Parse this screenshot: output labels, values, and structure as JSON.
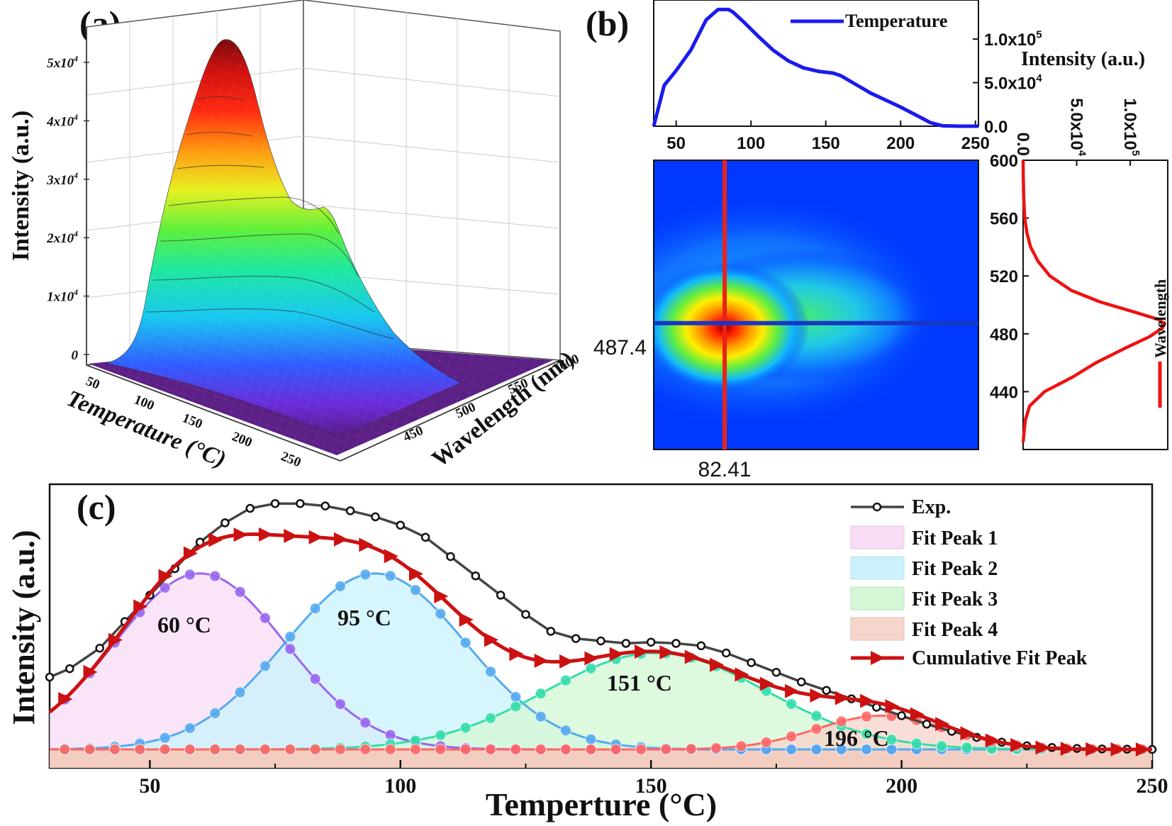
{
  "panel_a": {
    "label": "(a)",
    "z_ticks": [
      {
        "v": 0,
        "t": "0"
      },
      {
        "v": 10000,
        "t": "1x10"
      },
      {
        "v": 20000,
        "t": "2x10"
      },
      {
        "v": 30000,
        "t": "3x10"
      },
      {
        "v": 40000,
        "t": "4x10"
      },
      {
        "v": 50000,
        "t": "5x10"
      }
    ],
    "z_exp": "4",
    "zlabel": "Intensity (a.u.)",
    "t_ticks": [
      "50",
      "100",
      "150",
      "200",
      "250"
    ],
    "xlabel": "Temperature (°C)",
    "w_ticks": [
      "450",
      "500",
      "550",
      "600"
    ],
    "ylabel": "Wavelength (nm)"
  },
  "panel_b": {
    "label": "(b)",
    "top": {
      "legend": "Temperature",
      "ylabel": "Intensity (a.u.)",
      "x_ticks": [
        50,
        100,
        150,
        200,
        250
      ],
      "y_ticks": [
        {
          "v": 0,
          "t": "0.0"
        },
        {
          "v": 50000,
          "t": "5.0x10"
        },
        {
          "v": 100000,
          "t": "1.0x10"
        }
      ],
      "y_exps": [
        "",
        "4",
        "5"
      ],
      "xlim": [
        35,
        252
      ],
      "ylim": [
        0,
        140000
      ],
      "temperature_profile": {
        "x": [
          35,
          38,
          42,
          50,
          60,
          70,
          78,
          85,
          88,
          95,
          105,
          115,
          125,
          135,
          145,
          155,
          160,
          170,
          180,
          190,
          200,
          210,
          220,
          228,
          240,
          252
        ],
        "y": [
          0,
          20000,
          47000,
          64000,
          88000,
          122000,
          134000,
          134000,
          131000,
          120000,
          103000,
          87000,
          75000,
          67000,
          63000,
          61000,
          58000,
          48000,
          38000,
          30000,
          22000,
          13000,
          4000,
          500,
          0,
          0
        ]
      }
    },
    "map": {
      "crosshair_x_label": "82.41",
      "crosshair_y_label": "487.4",
      "crosshair_x": 82.41,
      "crosshair_y": 487.4,
      "xlim": [
        35,
        252
      ],
      "ylim": [
        400,
        600
      ]
    },
    "side": {
      "legend": "Wavelength",
      "y_ticks": [
        440,
        480,
        520,
        560,
        600
      ],
      "x_ticks": [
        {
          "v": 0,
          "t": "0.0"
        },
        {
          "v": 50000,
          "t": "5.0x10"
        },
        {
          "v": 100000,
          "t": "1.0x10"
        }
      ],
      "x_exps": [
        "",
        "4",
        "5"
      ],
      "xlim": [
        0,
        135000
      ],
      "wavelength_profile": {
        "wavelength": [
          405,
          420,
          430,
          440,
          450,
          460,
          470,
          478,
          484,
          487,
          490,
          495,
          502,
          510,
          520,
          530,
          540,
          550,
          560,
          575,
          590,
          600
        ],
        "intensity": [
          0,
          2000,
          6000,
          20000,
          46000,
          68000,
          95000,
          118000,
          130000,
          132000,
          126000,
          104000,
          72000,
          45000,
          25000,
          14000,
          7000,
          3500,
          1500,
          500,
          100,
          0
        ]
      }
    }
  },
  "panel_c": {
    "label": "(c)",
    "xlabel": "Temperture (°C)",
    "ylabel": "Intensity (a.u.)",
    "x_ticks": [
      50,
      100,
      150,
      200,
      250
    ],
    "xlim": [
      30,
      250
    ],
    "peak_labels": [
      "60 °C",
      "95 °C",
      "151 °C",
      "196 °C"
    ],
    "legend": [
      "Exp.",
      "Fit Peak 1",
      "Fit Peak 2",
      "Fit Peak 3",
      "Fit Peak 4",
      "Cumulative Fit Peak"
    ],
    "chart_data": {
      "type": "line",
      "x_units": "°C",
      "peaks": [
        {
          "name": "Fit Peak 1",
          "center": 60,
          "height": 0.73,
          "sigma": 17,
          "color": "#9966ee",
          "fill": "#f9ddf6"
        },
        {
          "name": "Fit Peak 2",
          "center": 95,
          "height": 0.73,
          "sigma": 18,
          "color": "#55aaee",
          "fill": "#cdf2fb"
        },
        {
          "name": "Fit Peak 3",
          "center": 151,
          "height": 0.4,
          "sigma": 22,
          "color": "#33ddaa",
          "fill": "#d4f7d6"
        },
        {
          "name": "Fit Peak 4",
          "center": 196,
          "height": 0.14,
          "sigma": 13,
          "color": "#ff6666",
          "fill": "#f6d6cc"
        }
      ],
      "cumulative_color": "#cc1111",
      "exp_color": "#444444",
      "exp": {
        "x": [
          30,
          34,
          40,
          45,
          50,
          55,
          60,
          65,
          70,
          75,
          80,
          85,
          90,
          95,
          100,
          105,
          110,
          115,
          120,
          125,
          130,
          135,
          140,
          145,
          150,
          155,
          160,
          165,
          170,
          175,
          180,
          185,
          190,
          195,
          200,
          205,
          210,
          215,
          220,
          225,
          230,
          235,
          240,
          245,
          250
        ],
        "y": [
          0.3,
          0.335,
          0.42,
          0.53,
          0.64,
          0.75,
          0.86,
          0.94,
          1.0,
          1.02,
          1.02,
          1.01,
          0.99,
          0.965,
          0.93,
          0.88,
          0.8,
          0.72,
          0.64,
          0.56,
          0.49,
          0.46,
          0.45,
          0.44,
          0.445,
          0.44,
          0.43,
          0.4,
          0.36,
          0.32,
          0.28,
          0.245,
          0.21,
          0.175,
          0.14,
          0.105,
          0.075,
          0.05,
          0.03,
          0.015,
          0.008,
          0.004,
          0.002,
          0.001,
          0.0
        ]
      }
    }
  },
  "colors": {
    "map_bg": "#0038ff",
    "crosshair_v": "#e8231a",
    "crosshair_h": "#1a35c4",
    "blue_line": "#1a1aee",
    "red_line": "#ee1111"
  }
}
